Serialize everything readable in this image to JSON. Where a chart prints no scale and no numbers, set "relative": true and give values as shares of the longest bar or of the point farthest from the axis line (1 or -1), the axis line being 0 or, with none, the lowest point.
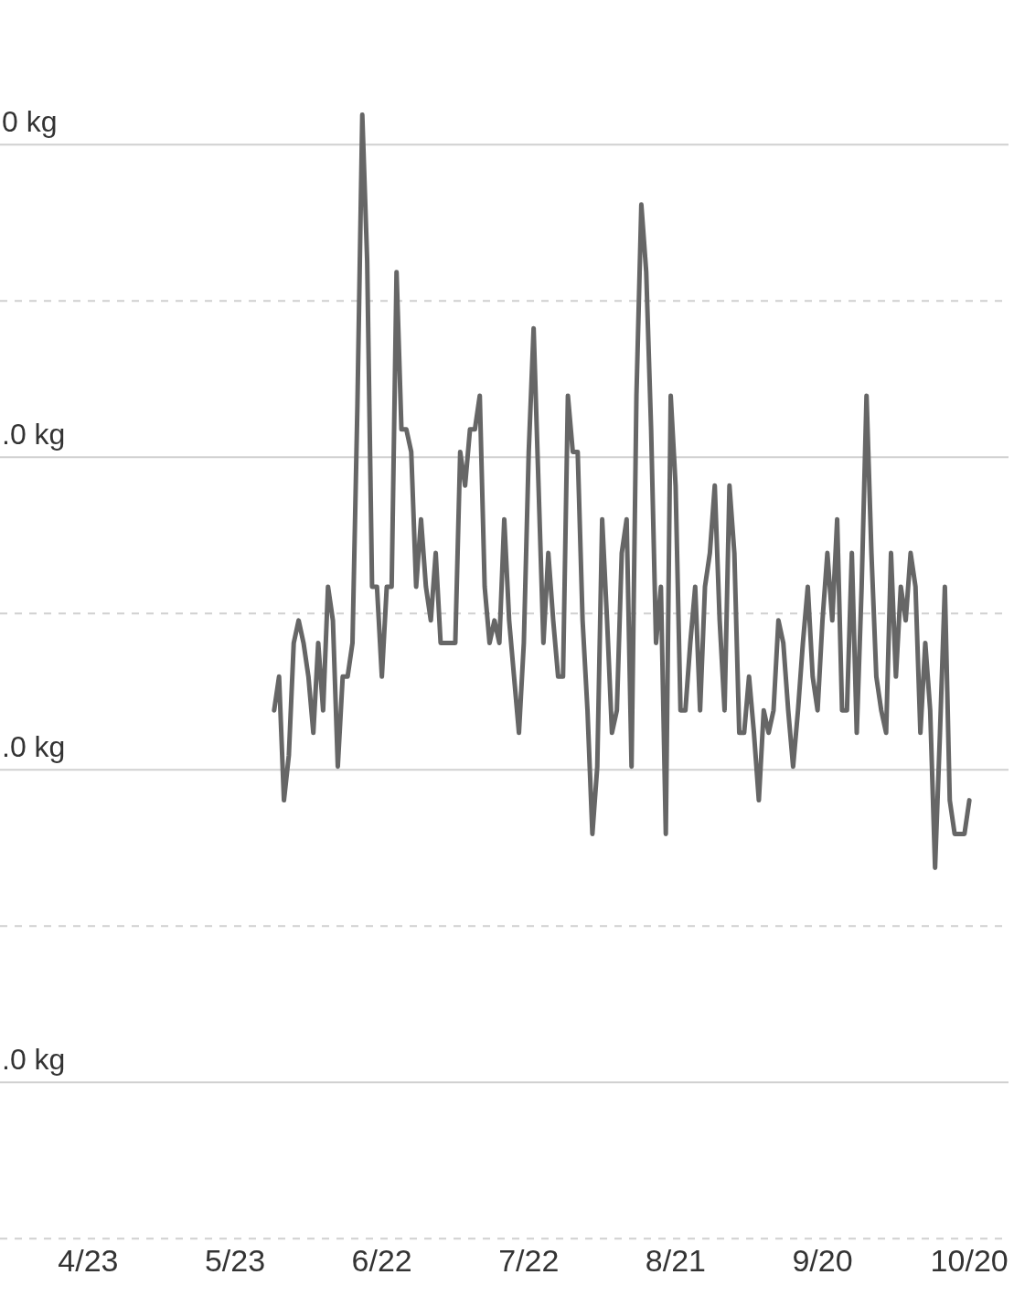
{
  "chart_data": {
    "type": "line",
    "relative": true,
    "grid": "y",
    "marker": "none",
    "line_style": "solid",
    "xlim": [
      "--04-05",
      "--10-28"
    ],
    "xticks": [
      {
        "value": "--04-23",
        "label": "4/23"
      },
      {
        "value": "--05-23",
        "label": "5/23"
      },
      {
        "value": "--06-22",
        "label": "6/22"
      },
      {
        "value": "--07-22",
        "label": "7/22"
      },
      {
        "value": "--08-21",
        "label": "8/21"
      },
      {
        "value": "--09-20",
        "label": "9/20"
      },
      {
        "value": "--10-20",
        "label": "10/20"
      }
    ],
    "annotations": [
      "0 kg",
      ".0 kg",
      ".0 kg",
      ".0 kg"
    ],
    "x": [
      "--05-31",
      "--06-01",
      "--06-02",
      "--06-03",
      "--06-04",
      "--06-05",
      "--06-06",
      "--06-07",
      "--06-08",
      "--06-09",
      "--06-10",
      "--06-11",
      "--06-12",
      "--06-13",
      "--06-14",
      "--06-15",
      "--06-16",
      "--06-17",
      "--06-18",
      "--06-19",
      "--06-20",
      "--06-21",
      "--06-22",
      "--06-23",
      "--06-24",
      "--06-25",
      "--06-26",
      "--06-27",
      "--06-28",
      "--06-29",
      "--06-30",
      "--07-01",
      "--07-02",
      "--07-03",
      "--07-04",
      "--07-05",
      "--07-06",
      "--07-07",
      "--07-08",
      "--07-09",
      "--07-10",
      "--07-11",
      "--07-12",
      "--07-13",
      "--07-14",
      "--07-15",
      "--07-16",
      "--07-17",
      "--07-18",
      "--07-19",
      "--07-20",
      "--07-21",
      "--07-22",
      "--07-23",
      "--07-24",
      "--07-25",
      "--07-26",
      "--07-27",
      "--07-28",
      "--07-29",
      "--07-30",
      "--07-31",
      "--08-01",
      "--08-02",
      "--08-03",
      "--08-04",
      "--08-05",
      "--08-06",
      "--08-07",
      "--08-08",
      "--08-09",
      "--08-10",
      "--08-11",
      "--08-12",
      "--08-13",
      "--08-14",
      "--08-15",
      "--08-16",
      "--08-17",
      "--08-18",
      "--08-19",
      "--08-20",
      "--08-21",
      "--08-22",
      "--08-23",
      "--08-24",
      "--08-25",
      "--08-26",
      "--08-27",
      "--08-28",
      "--08-29",
      "--08-30",
      "--08-31",
      "--09-01",
      "--09-02",
      "--09-03",
      "--09-04",
      "--09-05",
      "--09-06",
      "--09-07",
      "--09-08",
      "--09-09",
      "--09-10",
      "--09-11",
      "--09-12",
      "--09-13",
      "--09-14",
      "--09-15",
      "--09-16",
      "--09-17",
      "--09-18",
      "--09-19",
      "--09-20",
      "--09-21",
      "--09-22",
      "--09-23",
      "--09-24",
      "--09-25",
      "--09-26",
      "--09-27",
      "--09-28",
      "--09-29",
      "--09-30",
      "--10-01",
      "--10-02",
      "--10-03",
      "--10-04",
      "--10-05",
      "--10-06",
      "--10-07",
      "--10-08",
      "--10-09",
      "--10-10",
      "--10-11",
      "--10-12",
      "--10-13",
      "--10-14",
      "--10-15",
      "--10-16",
      "--10-17",
      "--10-18",
      "--10-19",
      "--10-20"
    ],
    "series": [
      {
        "color": "#666666",
        "values": [
          0.47,
          0.5,
          0.39,
          0.43,
          0.53,
          0.55,
          0.53,
          0.5,
          0.45,
          0.53,
          0.47,
          0.58,
          0.55,
          0.42,
          0.5,
          0.5,
          0.53,
          0.74,
          1,
          0.87,
          0.58,
          0.58,
          0.5,
          0.58,
          0.58,
          0.86,
          0.72,
          0.72,
          0.7,
          0.58,
          0.64,
          0.58,
          0.55,
          0.61,
          0.53,
          0.53,
          0.53,
          0.53,
          0.7,
          0.67,
          0.72,
          0.72,
          0.75,
          0.58,
          0.53,
          0.55,
          0.53,
          0.64,
          0.55,
          0.5,
          0.45,
          0.53,
          0.7,
          0.81,
          0.67,
          0.53,
          0.61,
          0.55,
          0.5,
          0.5,
          0.75,
          0.7,
          0.7,
          0.55,
          0.47,
          0.36,
          0.42,
          0.64,
          0.55,
          0.45,
          0.47,
          0.61,
          0.64,
          0.42,
          0.75,
          0.92,
          0.86,
          0.72,
          0.53,
          0.58,
          0.36,
          0.75,
          0.67,
          0.47,
          0.47,
          0.53,
          0.58,
          0.47,
          0.58,
          0.61,
          0.67,
          0.55,
          0.47,
          0.67,
          0.61,
          0.45,
          0.45,
          0.5,
          0.45,
          0.39,
          0.47,
          0.45,
          0.47,
          0.55,
          0.53,
          0.47,
          0.42,
          0.47,
          0.53,
          0.58,
          0.5,
          0.47,
          0.55,
          0.61,
          0.55,
          0.64,
          0.47,
          0.47,
          0.61,
          0.45,
          0.58,
          0.75,
          0.61,
          0.5,
          0.47,
          0.45,
          0.61,
          0.5,
          0.58,
          0.55,
          0.61,
          0.58,
          0.45,
          0.53,
          0.47,
          0.33,
          0.45,
          0.58,
          0.39,
          0.36,
          0.36,
          0.36,
          0.39
        ]
      }
    ]
  }
}
